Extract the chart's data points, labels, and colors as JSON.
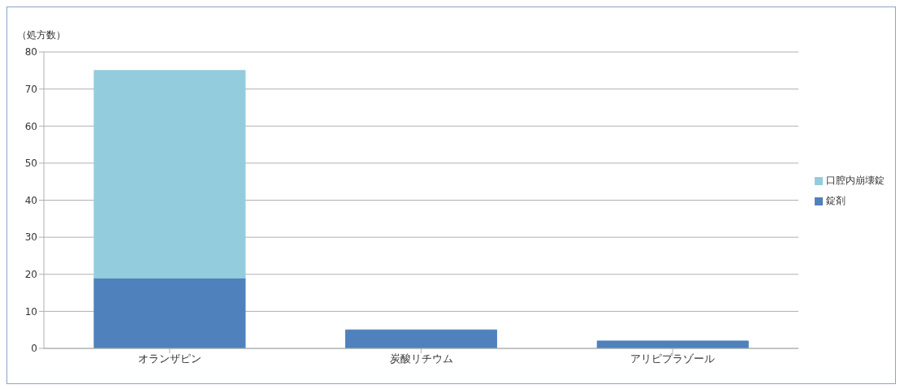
{
  "chart_data": {
    "type": "bar",
    "stacked": true,
    "ylabel": "（処方数）",
    "categories": [
      "オランザピン",
      "炭酸リチウム",
      "アリピプラゾール"
    ],
    "series": [
      {
        "name": "錠剤",
        "color": "#4f81bd",
        "values": [
          19,
          5,
          2
        ]
      },
      {
        "name": "口腔内崩壊錠",
        "color": "#93cddd",
        "values": [
          56,
          0,
          0
        ]
      }
    ],
    "ylim": [
      0,
      80
    ],
    "yticks": [
      0,
      10,
      20,
      30,
      40,
      50,
      60,
      70,
      80
    ],
    "grid": "y",
    "legend": "right"
  }
}
